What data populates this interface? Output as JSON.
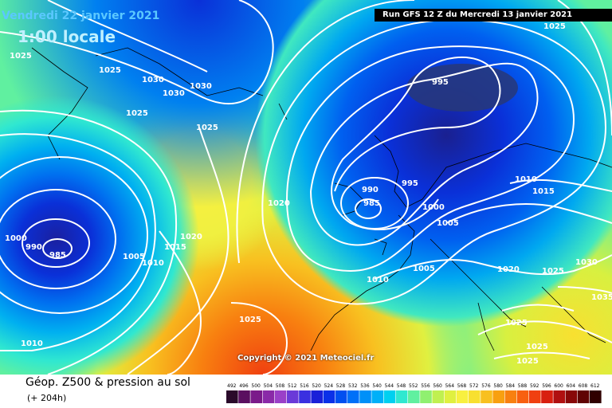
{
  "header": {
    "date": "Vendredi 22 janvier 2021",
    "time": "1:00 locale",
    "run": "Run GFS 12 Z du Mercredi 13 janvier 2021"
  },
  "copyright": "Copyright © 2021 Meteociel.fr",
  "legend": {
    "title": "Géop. Z500 & pression au sol",
    "subtitle": "(+ 204h)",
    "scale_values": [
      "492",
      "496",
      "500",
      "504",
      "508",
      "512",
      "516",
      "520",
      "524",
      "528",
      "532",
      "536",
      "540",
      "544",
      "548",
      "552",
      "556",
      "560",
      "564",
      "568",
      "572",
      "576",
      "580",
      "584",
      "588",
      "592",
      "596",
      "600",
      "604",
      "608",
      "612"
    ],
    "scale_colors": [
      "#2a0a2a",
      "#5a1060",
      "#7a1a8a",
      "#8a2aa8",
      "#9a40c8",
      "#6a3ad8",
      "#3a30e0",
      "#1a20d8",
      "#0a30e8",
      "#0050f0",
      "#0070f8",
      "#0090f8",
      "#00b0f8",
      "#00d0f0",
      "#30e8d0",
      "#60f0a0",
      "#90f070",
      "#c0f050",
      "#e0f040",
      "#f8f040",
      "#f8e030",
      "#f8c020",
      "#f8a010",
      "#f88010",
      "#f86010",
      "#f04010",
      "#d82010",
      "#b01010",
      "#880808",
      "#600404",
      "#300000"
    ]
  },
  "isobar_labels": [
    {
      "text": "1025"
    },
    {
      "text": "1025"
    },
    {
      "text": "1030"
    },
    {
      "text": "1030"
    },
    {
      "text": "1030"
    },
    {
      "text": "1025"
    },
    {
      "text": "1025"
    },
    {
      "text": "1020"
    },
    {
      "text": "1020"
    },
    {
      "text": "1015"
    },
    {
      "text": "1010"
    },
    {
      "text": "1005"
    },
    {
      "text": "1000"
    },
    {
      "text": "990"
    },
    {
      "text": "985"
    },
    {
      "text": "1010"
    },
    {
      "text": "1025"
    },
    {
      "text": "990"
    },
    {
      "text": "985"
    },
    {
      "text": "995"
    },
    {
      "text": "1000"
    },
    {
      "text": "1005"
    },
    {
      "text": "1005"
    },
    {
      "text": "1010"
    },
    {
      "text": "995"
    },
    {
      "text": "1010"
    },
    {
      "text": "1015"
    },
    {
      "text": "1020"
    },
    {
      "text": "1025"
    },
    {
      "text": "1030"
    },
    {
      "text": "1025"
    },
    {
      "text": "1025"
    },
    {
      "text": "1035"
    },
    {
      "text": "1025"
    },
    {
      "text": "1025"
    }
  ]
}
